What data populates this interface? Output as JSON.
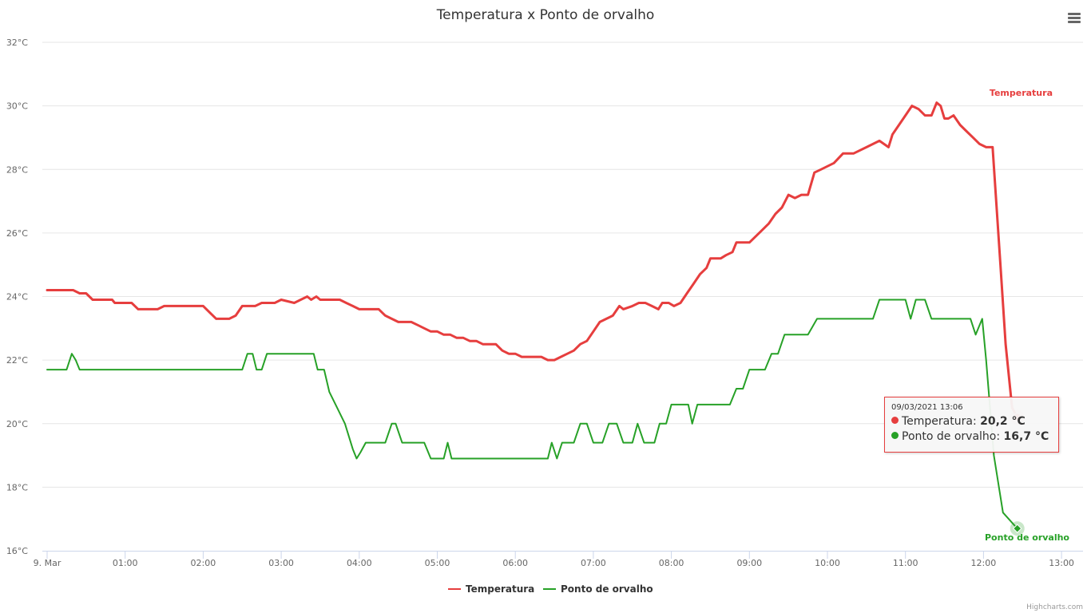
{
  "chart_data": {
    "type": "line",
    "title": "Temperatura x Ponto de orvalho",
    "ylim": [
      16,
      32
    ],
    "y_ticks": [
      "16°C",
      "18°C",
      "20°C",
      "22°C",
      "24°C",
      "26°C",
      "28°C",
      "30°C",
      "32°C"
    ],
    "x_ticks": [
      "9. Mar",
      "01:00",
      "02:00",
      "03:00",
      "04:00",
      "05:00",
      "06:00",
      "07:00",
      "08:00",
      "09:00",
      "10:00",
      "11:00",
      "12:00",
      "13:00"
    ],
    "grid": true,
    "legend_position": "bottom-center",
    "series": [
      {
        "name": "Temperatura",
        "color": "#e63e3e",
        "end_label": "Temperatura",
        "points": [
          [
            0,
            24.2
          ],
          [
            20,
            24.2
          ],
          [
            25,
            24.1
          ],
          [
            30,
            24.1
          ],
          [
            35,
            23.9
          ],
          [
            50,
            23.9
          ],
          [
            52,
            23.8
          ],
          [
            65,
            23.8
          ],
          [
            70,
            23.6
          ],
          [
            85,
            23.6
          ],
          [
            90,
            23.7
          ],
          [
            120,
            23.7
          ],
          [
            125,
            23.5
          ],
          [
            130,
            23.3
          ],
          [
            140,
            23.3
          ],
          [
            145,
            23.4
          ],
          [
            150,
            23.7
          ],
          [
            160,
            23.7
          ],
          [
            165,
            23.8
          ],
          [
            175,
            23.8
          ],
          [
            180,
            23.9
          ],
          [
            190,
            23.8
          ],
          [
            200,
            24.0
          ],
          [
            203,
            23.9
          ],
          [
            207,
            24.0
          ],
          [
            210,
            23.9
          ],
          [
            225,
            23.9
          ],
          [
            230,
            23.8
          ],
          [
            235,
            23.7
          ],
          [
            240,
            23.6
          ],
          [
            255,
            23.6
          ],
          [
            260,
            23.4
          ],
          [
            265,
            23.3
          ],
          [
            270,
            23.2
          ],
          [
            280,
            23.2
          ],
          [
            285,
            23.1
          ],
          [
            290,
            23.0
          ],
          [
            295,
            22.9
          ],
          [
            300,
            22.9
          ],
          [
            305,
            22.8
          ],
          [
            310,
            22.8
          ],
          [
            315,
            22.7
          ],
          [
            320,
            22.7
          ],
          [
            325,
            22.6
          ],
          [
            330,
            22.6
          ],
          [
            335,
            22.5
          ],
          [
            345,
            22.5
          ],
          [
            350,
            22.3
          ],
          [
            355,
            22.2
          ],
          [
            360,
            22.2
          ],
          [
            365,
            22.1
          ],
          [
            380,
            22.1
          ],
          [
            385,
            22.0
          ],
          [
            390,
            22.0
          ],
          [
            395,
            22.1
          ],
          [
            400,
            22.2
          ],
          [
            405,
            22.3
          ],
          [
            410,
            22.5
          ],
          [
            415,
            22.6
          ],
          [
            420,
            22.9
          ],
          [
            425,
            23.2
          ],
          [
            430,
            23.3
          ],
          [
            435,
            23.4
          ],
          [
            440,
            23.7
          ],
          [
            443,
            23.6
          ],
          [
            450,
            23.7
          ],
          [
            455,
            23.8
          ],
          [
            460,
            23.8
          ],
          [
            465,
            23.7
          ],
          [
            470,
            23.6
          ],
          [
            473,
            23.8
          ],
          [
            478,
            23.8
          ],
          [
            482,
            23.7
          ],
          [
            487,
            23.8
          ],
          [
            492,
            24.1
          ],
          [
            497,
            24.4
          ],
          [
            502,
            24.7
          ],
          [
            507,
            24.9
          ],
          [
            510,
            25.2
          ],
          [
            518,
            25.2
          ],
          [
            522,
            25.3
          ],
          [
            527,
            25.4
          ],
          [
            530,
            25.7
          ],
          [
            540,
            25.7
          ],
          [
            545,
            25.9
          ],
          [
            550,
            26.1
          ],
          [
            555,
            26.3
          ],
          [
            560,
            26.6
          ],
          [
            565,
            26.8
          ],
          [
            570,
            27.2
          ],
          [
            575,
            27.1
          ],
          [
            580,
            27.2
          ],
          [
            585,
            27.2
          ],
          [
            590,
            27.9
          ],
          [
            595,
            28.0
          ],
          [
            605,
            28.2
          ],
          [
            612,
            28.5
          ],
          [
            620,
            28.5
          ],
          [
            630,
            28.7
          ],
          [
            640,
            28.9
          ],
          [
            647,
            28.7
          ],
          [
            650,
            29.1
          ],
          [
            655,
            29.4
          ],
          [
            660,
            29.7
          ],
          [
            665,
            30.0
          ],
          [
            670,
            29.9
          ],
          [
            675,
            29.7
          ],
          [
            680,
            29.7
          ],
          [
            684,
            30.1
          ],
          [
            687,
            30.0
          ],
          [
            690,
            29.6
          ],
          [
            693,
            29.6
          ],
          [
            697,
            29.7
          ],
          [
            702,
            29.4
          ],
          [
            707,
            29.2
          ],
          [
            712,
            29.0
          ],
          [
            717,
            28.8
          ],
          [
            722,
            28.7
          ],
          [
            727,
            28.7
          ],
          [
            733,
            25.0
          ],
          [
            737,
            22.5
          ],
          [
            742,
            20.5
          ],
          [
            746,
            20.2
          ]
        ]
      },
      {
        "name": "Ponto de orvalho",
        "color": "#27a127",
        "end_label": "Ponto de orvalho",
        "points": [
          [
            0,
            21.7
          ],
          [
            15,
            21.7
          ],
          [
            19,
            22.2
          ],
          [
            22,
            22.0
          ],
          [
            25,
            21.7
          ],
          [
            150,
            21.7
          ],
          [
            154,
            22.2
          ],
          [
            158,
            22.2
          ],
          [
            161,
            21.7
          ],
          [
            165,
            21.7
          ],
          [
            169,
            22.2
          ],
          [
            205,
            22.2
          ],
          [
            208,
            21.7
          ],
          [
            213,
            21.7
          ],
          [
            217,
            21.0
          ],
          [
            223,
            20.5
          ],
          [
            229,
            20.0
          ],
          [
            235,
            19.2
          ],
          [
            238,
            18.9
          ],
          [
            241,
            19.1
          ],
          [
            245,
            19.4
          ],
          [
            260,
            19.4
          ],
          [
            265,
            20.0
          ],
          [
            268,
            20.0
          ],
          [
            273,
            19.4
          ],
          [
            290,
            19.4
          ],
          [
            295,
            18.9
          ],
          [
            305,
            18.9
          ],
          [
            308,
            19.4
          ],
          [
            311,
            18.9
          ],
          [
            385,
            18.9
          ],
          [
            388,
            19.4
          ],
          [
            392,
            18.9
          ],
          [
            396,
            19.4
          ],
          [
            405,
            19.4
          ],
          [
            410,
            20.0
          ],
          [
            415,
            20.0
          ],
          [
            420,
            19.4
          ],
          [
            427,
            19.4
          ],
          [
            432,
            20.0
          ],
          [
            438,
            20.0
          ],
          [
            443,
            19.4
          ],
          [
            450,
            19.4
          ],
          [
            454,
            20.0
          ],
          [
            459,
            19.4
          ],
          [
            467,
            19.4
          ],
          [
            471,
            20.0
          ],
          [
            476,
            20.0
          ],
          [
            480,
            20.6
          ],
          [
            493,
            20.6
          ],
          [
            496,
            20.0
          ],
          [
            500,
            20.6
          ],
          [
            525,
            20.6
          ],
          [
            530,
            21.1
          ],
          [
            535,
            21.1
          ],
          [
            540,
            21.7
          ],
          [
            552,
            21.7
          ],
          [
            557,
            22.2
          ],
          [
            562,
            22.2
          ],
          [
            567,
            22.8
          ],
          [
            585,
            22.8
          ],
          [
            592,
            23.3
          ],
          [
            635,
            23.3
          ],
          [
            640,
            23.9
          ],
          [
            660,
            23.9
          ],
          [
            664,
            23.3
          ],
          [
            668,
            23.9
          ],
          [
            675,
            23.9
          ],
          [
            680,
            23.3
          ],
          [
            710,
            23.3
          ],
          [
            714,
            22.8
          ],
          [
            719,
            23.3
          ],
          [
            722,
            22.0
          ],
          [
            728,
            19.0
          ],
          [
            735,
            17.2
          ],
          [
            746,
            16.7
          ]
        ]
      }
    ],
    "tooltip": {
      "date": "09/03/2021 13:06",
      "rows": [
        {
          "label": "Temperatura: ",
          "value": "20,2 °C",
          "color": "#e63e3e"
        },
        {
          "label": "Ponto de orvalho: ",
          "value": "16,7 °C",
          "color": "#27a127"
        }
      ]
    },
    "credits": "Highcharts.com"
  }
}
